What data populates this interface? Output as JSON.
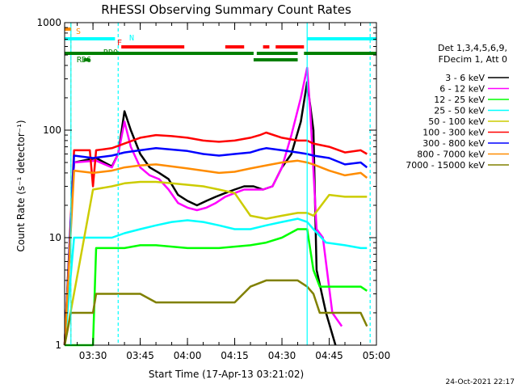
{
  "chart_data": {
    "type": "line",
    "title": "RHESSI Observing Summary Count Rates",
    "xlabel": "Start Time (17-Apr-13 03:21:02)",
    "ylabel": "Count Rate (s⁻¹ detector⁻¹)",
    "y_scale": "log",
    "ylim": [
      1,
      1000
    ],
    "y_ticks": [
      1,
      10,
      100,
      1000
    ],
    "xlim": [
      "03:21",
      "05:00"
    ],
    "x_ticks": [
      "03:30",
      "03:45",
      "04:00",
      "04:15",
      "04:30",
      "04:45",
      "05:00"
    ],
    "legend_header": [
      "Det 1,3,4,5,6,9,",
      "FDecim 1, Att 0"
    ],
    "date_stamp": "24-Oct-2021 22:17",
    "series": [
      {
        "name": "3 - 6 keV",
        "color": "#000000",
        "points": [
          [
            "03:21",
            1
          ],
          [
            "03:24",
            50
          ],
          [
            "03:31",
            55
          ],
          [
            "03:36",
            46
          ],
          [
            "03:38",
            60
          ],
          [
            "03:40",
            150
          ],
          [
            "03:42",
            100
          ],
          [
            "03:45",
            60
          ],
          [
            "03:48",
            45
          ],
          [
            "03:51",
            40
          ],
          [
            "03:54",
            35
          ],
          [
            "03:57",
            25
          ],
          [
            "04:00",
            22
          ],
          [
            "04:03",
            20
          ],
          [
            "04:06",
            22
          ],
          [
            "04:09",
            24
          ],
          [
            "04:12",
            26
          ],
          [
            "04:15",
            28
          ],
          [
            "04:18",
            30
          ],
          [
            "04:21",
            30
          ],
          [
            "04:24",
            28
          ],
          [
            "04:27",
            30
          ],
          [
            "04:30",
            45
          ],
          [
            "04:33",
            60
          ],
          [
            "04:36",
            120
          ],
          [
            "04:38",
            280
          ],
          [
            "04:40",
            100
          ],
          [
            "04:41",
            5
          ],
          [
            "04:44",
            2
          ],
          [
            "04:47",
            1
          ]
        ]
      },
      {
        "name": "6 - 12 keV",
        "color": "#ff00ff",
        "points": [
          [
            "03:21",
            1
          ],
          [
            "03:24",
            50
          ],
          [
            "03:31",
            52
          ],
          [
            "03:36",
            45
          ],
          [
            "03:38",
            60
          ],
          [
            "03:40",
            120
          ],
          [
            "03:42",
            70
          ],
          [
            "03:45",
            45
          ],
          [
            "03:48",
            38
          ],
          [
            "03:51",
            35
          ],
          [
            "03:54",
            28
          ],
          [
            "03:57",
            21
          ],
          [
            "04:00",
            19
          ],
          [
            "04:03",
            18
          ],
          [
            "04:06",
            19
          ],
          [
            "04:09",
            21
          ],
          [
            "04:12",
            24
          ],
          [
            "04:15",
            26
          ],
          [
            "04:18",
            28
          ],
          [
            "04:21",
            28
          ],
          [
            "04:24",
            28
          ],
          [
            "04:27",
            30
          ],
          [
            "04:30",
            45
          ],
          [
            "04:33",
            90
          ],
          [
            "04:36",
            200
          ],
          [
            "04:38",
            380
          ],
          [
            "04:39",
            150
          ],
          [
            "04:41",
            12
          ],
          [
            "04:43",
            10
          ],
          [
            "04:46",
            2
          ],
          [
            "04:49",
            1.5
          ]
        ]
      },
      {
        "name": "12 - 25 keV",
        "color": "#00ff00",
        "points": [
          [
            "03:21",
            1
          ],
          [
            "03:30",
            1
          ],
          [
            "03:31",
            8
          ],
          [
            "03:36",
            8
          ],
          [
            "03:40",
            8
          ],
          [
            "03:45",
            8.5
          ],
          [
            "03:50",
            8.5
          ],
          [
            "04:00",
            8
          ],
          [
            "04:10",
            8
          ],
          [
            "04:20",
            8.5
          ],
          [
            "04:25",
            9
          ],
          [
            "04:30",
            10
          ],
          [
            "04:35",
            12
          ],
          [
            "04:38",
            12
          ],
          [
            "04:40",
            5
          ],
          [
            "04:42",
            3.5
          ],
          [
            "04:50",
            3.5
          ],
          [
            "04:55",
            3.5
          ],
          [
            "04:57",
            3.2
          ]
        ]
      },
      {
        "name": "25 - 50 keV",
        "color": "#00ffff",
        "points": [
          [
            "03:21",
            1
          ],
          [
            "03:24",
            10
          ],
          [
            "03:30",
            10
          ],
          [
            "03:36",
            10
          ],
          [
            "03:40",
            11
          ],
          [
            "03:45",
            12
          ],
          [
            "03:50",
            13
          ],
          [
            "03:55",
            14
          ],
          [
            "04:00",
            14.5
          ],
          [
            "04:05",
            14
          ],
          [
            "04:10",
            13
          ],
          [
            "04:15",
            12
          ],
          [
            "04:20",
            12
          ],
          [
            "04:25",
            13
          ],
          [
            "04:30",
            14
          ],
          [
            "04:35",
            15
          ],
          [
            "04:38",
            14
          ],
          [
            "04:40",
            12
          ],
          [
            "04:44",
            9
          ],
          [
            "04:50",
            8.5
          ],
          [
            "04:55",
            8
          ],
          [
            "04:57",
            8
          ]
        ]
      },
      {
        "name": "50 - 100 keV",
        "color": "#cccc00",
        "points": [
          [
            "03:21",
            1
          ],
          [
            "03:30",
            28
          ],
          [
            "03:36",
            30
          ],
          [
            "03:40",
            32
          ],
          [
            "03:45",
            33
          ],
          [
            "03:50",
            33
          ],
          [
            "03:55",
            32
          ],
          [
            "04:00",
            31
          ],
          [
            "04:05",
            30
          ],
          [
            "04:10",
            28
          ],
          [
            "04:15",
            26
          ],
          [
            "04:20",
            16
          ],
          [
            "04:25",
            15
          ],
          [
            "04:30",
            16
          ],
          [
            "04:35",
            17
          ],
          [
            "04:38",
            17
          ],
          [
            "04:40",
            16
          ],
          [
            "04:45",
            25
          ],
          [
            "04:50",
            24
          ],
          [
            "04:55",
            24
          ],
          [
            "04:57",
            24
          ]
        ]
      },
      {
        "name": "100 - 300 keV",
        "color": "#ff0000",
        "points": [
          [
            "03:21",
            1
          ],
          [
            "03:24",
            65
          ],
          [
            "03:29",
            65
          ],
          [
            "03:30",
            30
          ],
          [
            "03:31",
            65
          ],
          [
            "03:36",
            68
          ],
          [
            "03:40",
            75
          ],
          [
            "03:45",
            85
          ],
          [
            "03:50",
            90
          ],
          [
            "03:55",
            88
          ],
          [
            "04:00",
            85
          ],
          [
            "04:05",
            80
          ],
          [
            "04:10",
            78
          ],
          [
            "04:15",
            80
          ],
          [
            "04:20",
            85
          ],
          [
            "04:23",
            90
          ],
          [
            "04:25",
            95
          ],
          [
            "04:30",
            85
          ],
          [
            "04:35",
            80
          ],
          [
            "04:38",
            80
          ],
          [
            "04:40",
            75
          ],
          [
            "04:45",
            70
          ],
          [
            "04:50",
            62
          ],
          [
            "04:55",
            65
          ],
          [
            "04:57",
            60
          ]
        ]
      },
      {
        "name": "300 - 800 keV",
        "color": "#0000ff",
        "points": [
          [
            "03:21",
            1
          ],
          [
            "03:24",
            58
          ],
          [
            "03:30",
            55
          ],
          [
            "03:36",
            58
          ],
          [
            "03:40",
            62
          ],
          [
            "03:45",
            65
          ],
          [
            "03:50",
            68
          ],
          [
            "03:55",
            66
          ],
          [
            "04:00",
            64
          ],
          [
            "04:05",
            60
          ],
          [
            "04:10",
            58
          ],
          [
            "04:15",
            60
          ],
          [
            "04:20",
            62
          ],
          [
            "04:23",
            66
          ],
          [
            "04:25",
            68
          ],
          [
            "04:30",
            65
          ],
          [
            "04:35",
            62
          ],
          [
            "04:38",
            60
          ],
          [
            "04:40",
            58
          ],
          [
            "04:45",
            55
          ],
          [
            "04:50",
            48
          ],
          [
            "04:55",
            50
          ],
          [
            "04:57",
            45
          ]
        ]
      },
      {
        "name": "800 - 7000 keV",
        "color": "#ff8c00",
        "points": [
          [
            "03:21",
            1
          ],
          [
            "03:24",
            42
          ],
          [
            "03:30",
            40
          ],
          [
            "03:36",
            42
          ],
          [
            "03:40",
            45
          ],
          [
            "03:45",
            47
          ],
          [
            "03:50",
            48
          ],
          [
            "03:55",
            46
          ],
          [
            "04:00",
            44
          ],
          [
            "04:05",
            42
          ],
          [
            "04:10",
            40
          ],
          [
            "04:15",
            41
          ],
          [
            "04:20",
            44
          ],
          [
            "04:25",
            47
          ],
          [
            "04:30",
            50
          ],
          [
            "04:35",
            52
          ],
          [
            "04:38",
            50
          ],
          [
            "04:40",
            48
          ],
          [
            "04:45",
            42
          ],
          [
            "04:50",
            38
          ],
          [
            "04:55",
            40
          ],
          [
            "04:57",
            36
          ]
        ]
      },
      {
        "name": "7000 - 15000 keV",
        "color": "#808000",
        "points": [
          [
            "03:21",
            1
          ],
          [
            "03:23",
            2
          ],
          [
            "03:30",
            2
          ],
          [
            "03:31",
            3
          ],
          [
            "03:36",
            3
          ],
          [
            "03:40",
            3
          ],
          [
            "03:45",
            3
          ],
          [
            "03:50",
            2.5
          ],
          [
            "03:55",
            2.5
          ],
          [
            "04:00",
            2.5
          ],
          [
            "04:05",
            2.5
          ],
          [
            "04:10",
            2.5
          ],
          [
            "04:15",
            2.5
          ],
          [
            "04:20",
            3.5
          ],
          [
            "04:25",
            4
          ],
          [
            "04:30",
            4
          ],
          [
            "04:35",
            4
          ],
          [
            "04:38",
            3.5
          ],
          [
            "04:40",
            3
          ],
          [
            "04:42",
            2
          ],
          [
            "04:50",
            2
          ],
          [
            "04:55",
            2
          ],
          [
            "04:57",
            1.5
          ]
        ]
      }
    ],
    "vertical_markers": [
      {
        "time": "03:23",
        "color": "#ff8c00",
        "style": "dashed"
      },
      {
        "time": "03:23",
        "color": "#00ffff",
        "style": "solid"
      },
      {
        "time": "03:38",
        "color": "#00ffff",
        "style": "dashed"
      },
      {
        "time": "04:38",
        "color": "#00ffff",
        "style": "solid"
      },
      {
        "time": "04:58",
        "color": "#00ffff",
        "style": "dashed"
      }
    ],
    "flags": [
      {
        "label": "S",
        "color": "#ff8c00",
        "segments": [
          [
            "03:21",
            "03:23"
          ]
        ],
        "level": 0
      },
      {
        "label": "N",
        "color": "#00ffff",
        "segments": [
          [
            "03:21",
            "03:37"
          ],
          [
            "04:38",
            "05:00"
          ]
        ],
        "level": 1
      },
      {
        "label": "F",
        "color": "#ff0000",
        "segments": [
          [
            "03:39",
            "03:59"
          ],
          [
            "04:12",
            "04:18"
          ],
          [
            "04:24",
            "04:26"
          ],
          [
            "04:28",
            "04:37"
          ]
        ],
        "level": 2
      },
      {
        "label": "RDO",
        "color": "#008000",
        "segments": [
          [
            "03:21",
            "04:21"
          ],
          [
            "04:22",
            "04:35"
          ],
          [
            "04:37",
            "05:00"
          ]
        ],
        "level": 3
      },
      {
        "label": "RD6",
        "color": "#008000",
        "segments": [
          [
            "03:27",
            "03:29"
          ],
          [
            "04:21",
            "04:35"
          ]
        ],
        "level": 4
      }
    ]
  }
}
